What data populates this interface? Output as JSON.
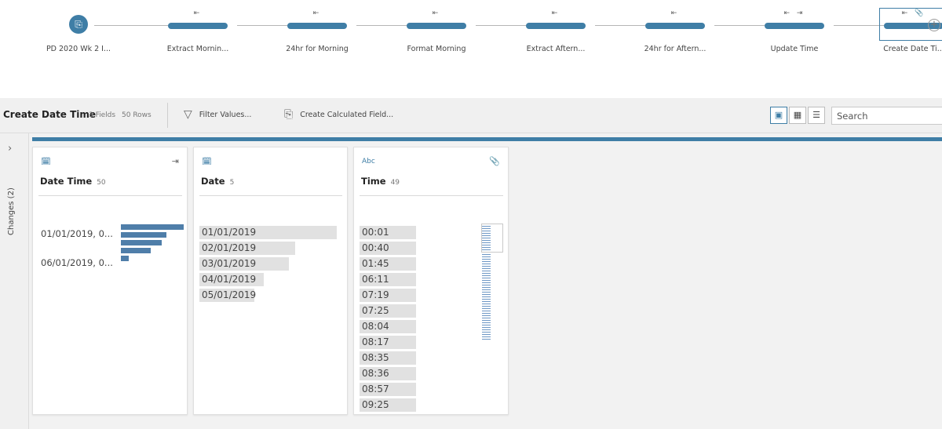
{
  "flow": {
    "nodes": [
      {
        "label": "PD 2020 Wk 2 I...",
        "icons": "⎘",
        "kind": "input"
      },
      {
        "label": "Extract Mornin...",
        "icons": "⇤"
      },
      {
        "label": "24hr for Morning",
        "icons": "⇤"
      },
      {
        "label": "Format Morning",
        "icons": "⇤"
      },
      {
        "label": "Extract Aftern...",
        "icons": "⇤"
      },
      {
        "label": "24hr for Aftern...",
        "icons": "⇤"
      },
      {
        "label": "Update Time",
        "icons": "⇤ ⇥"
      },
      {
        "label": "Create Date Ti...",
        "icons": "⇤ 📎",
        "selected": true
      }
    ],
    "add_icon": "+"
  },
  "toolbar": {
    "step_title": "Create Date Time",
    "fields": "3 Fields",
    "rows": "50 Rows",
    "filter_label": "Filter Values...",
    "calc_label": "Create Calculated Field...",
    "search_placeholder": "Search"
  },
  "changes": {
    "label": "Changes (2)",
    "toggle": "›"
  },
  "cards": {
    "datetime": {
      "name": "Date Time",
      "count": "50",
      "values": [
        "01/01/2019, 0...",
        "06/01/2019, 0..."
      ],
      "bar_fractions": [
        1.0,
        0.73,
        0.65,
        0.47,
        0.12
      ]
    },
    "date": {
      "name": "Date",
      "count": "5",
      "values": [
        "01/01/2019",
        "02/01/2019",
        "03/01/2019",
        "04/01/2019",
        "05/01/2019"
      ],
      "bar_fractions": [
        1.0,
        0.7,
        0.65,
        0.47,
        0.4
      ]
    },
    "time": {
      "name": "Time",
      "count": "49",
      "type_label": "Abc",
      "values": [
        "00:01",
        "00:40",
        "01:45",
        "06:11",
        "07:19",
        "07:25",
        "08:04",
        "08:17",
        "08:35",
        "08:36",
        "08:57",
        "09:25"
      ]
    }
  },
  "colors": {
    "accent": "#3f7ea6",
    "bar": "#4f7ea9",
    "value_bg": "#e1e1e1"
  }
}
